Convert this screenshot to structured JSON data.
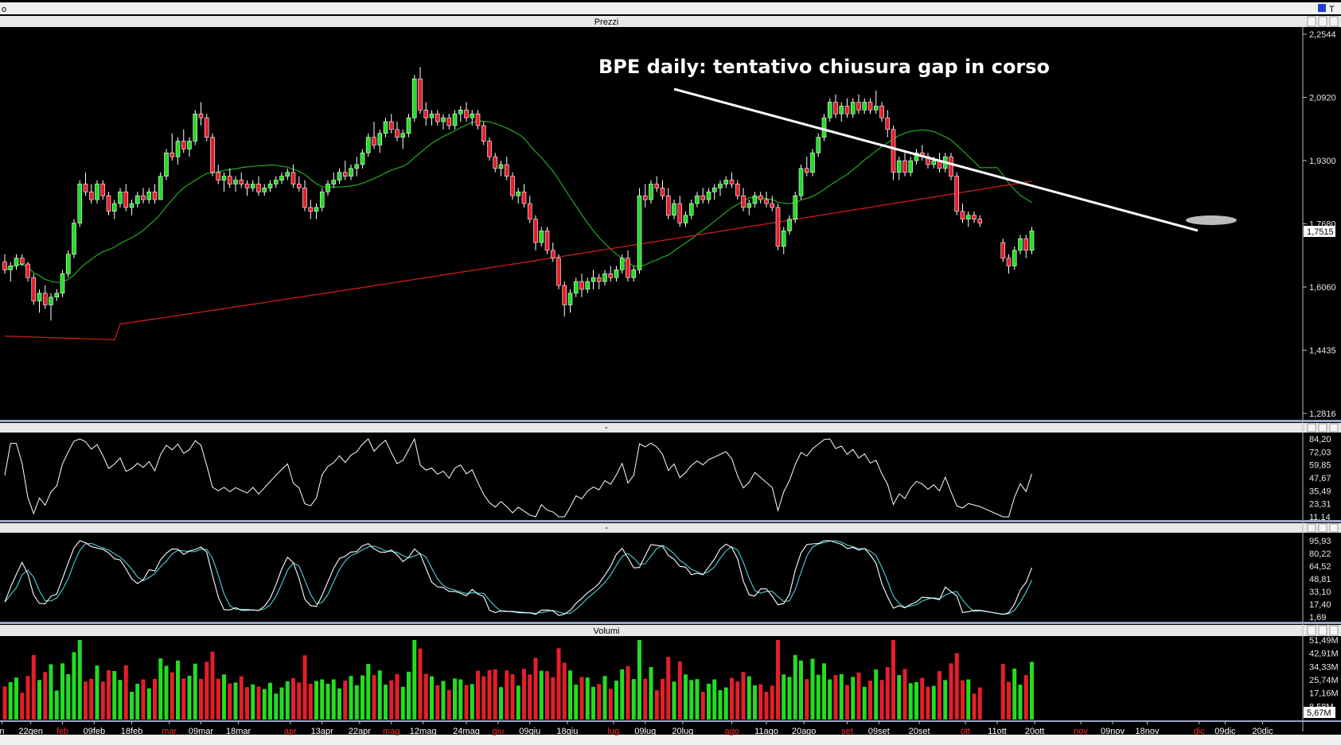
{
  "window": {
    "corner_label": "o",
    "corner_right": "T",
    "panel_titles": [
      "Prezzi",
      "-",
      "-",
      "Volumi"
    ]
  },
  "chart_data": [
    {
      "type": "candlestick",
      "title": "Prezzi",
      "annotation": "BPE daily: tentativo chiusura gap in corso",
      "yticks": [
        "2,2544",
        "2,0920",
        "1,9300",
        "1,7680",
        "1,6060",
        "1,4435",
        "1,2816"
      ],
      "ylim": [
        1.2816,
        2.2544
      ],
      "last_price": "1,7515",
      "ohlc": [
        [
          1.67,
          1.69,
          1.64,
          1.65
        ],
        [
          1.65,
          1.67,
          1.62,
          1.66
        ],
        [
          1.66,
          1.69,
          1.65,
          1.68
        ],
        [
          1.68,
          1.69,
          1.66,
          1.665
        ],
        [
          1.665,
          1.67,
          1.62,
          1.63
        ],
        [
          1.63,
          1.64,
          1.56,
          1.57
        ],
        [
          1.57,
          1.6,
          1.54,
          1.59
        ],
        [
          1.59,
          1.61,
          1.55,
          1.56
        ],
        [
          1.56,
          1.59,
          1.52,
          1.58
        ],
        [
          1.58,
          1.6,
          1.57,
          1.59
        ],
        [
          1.59,
          1.65,
          1.58,
          1.64
        ],
        [
          1.64,
          1.7,
          1.63,
          1.69
        ],
        [
          1.69,
          1.78,
          1.68,
          1.77
        ],
        [
          1.77,
          1.88,
          1.76,
          1.87
        ],
        [
          1.87,
          1.9,
          1.84,
          1.85
        ],
        [
          1.85,
          1.87,
          1.82,
          1.83
        ],
        [
          1.83,
          1.88,
          1.82,
          1.87
        ],
        [
          1.87,
          1.88,
          1.83,
          1.84
        ],
        [
          1.84,
          1.85,
          1.79,
          1.8
        ],
        [
          1.8,
          1.83,
          1.78,
          1.82
        ],
        [
          1.82,
          1.86,
          1.81,
          1.85
        ],
        [
          1.85,
          1.87,
          1.8,
          1.81
        ],
        [
          1.81,
          1.83,
          1.79,
          1.82
        ],
        [
          1.82,
          1.85,
          1.81,
          1.84
        ],
        [
          1.84,
          1.86,
          1.82,
          1.83
        ],
        [
          1.83,
          1.86,
          1.82,
          1.85
        ],
        [
          1.85,
          1.87,
          1.82,
          1.83
        ],
        [
          1.83,
          1.9,
          1.83,
          1.89
        ],
        [
          1.89,
          1.96,
          1.88,
          1.95
        ],
        [
          1.95,
          2.0,
          1.93,
          1.94
        ],
        [
          1.94,
          1.99,
          1.92,
          1.98
        ],
        [
          1.98,
          2.01,
          1.95,
          1.96
        ],
        [
          1.96,
          1.99,
          1.94,
          1.98
        ],
        [
          1.98,
          2.06,
          1.97,
          2.05
        ],
        [
          2.05,
          2.08,
          2.02,
          2.04
        ],
        [
          2.04,
          2.05,
          1.98,
          1.99
        ],
        [
          1.99,
          2.0,
          1.89,
          1.9
        ],
        [
          1.9,
          1.92,
          1.87,
          1.88
        ],
        [
          1.88,
          1.9,
          1.85,
          1.89
        ],
        [
          1.89,
          1.91,
          1.86,
          1.87
        ],
        [
          1.87,
          1.89,
          1.85,
          1.88
        ],
        [
          1.88,
          1.9,
          1.86,
          1.87
        ],
        [
          1.87,
          1.88,
          1.84,
          1.86
        ],
        [
          1.86,
          1.88,
          1.85,
          1.87
        ],
        [
          1.87,
          1.89,
          1.84,
          1.85
        ],
        [
          1.85,
          1.87,
          1.84,
          1.86
        ],
        [
          1.86,
          1.88,
          1.85,
          1.87
        ],
        [
          1.87,
          1.89,
          1.86,
          1.88
        ],
        [
          1.88,
          1.9,
          1.87,
          1.89
        ],
        [
          1.89,
          1.91,
          1.88,
          1.9
        ],
        [
          1.9,
          1.92,
          1.86,
          1.87
        ],
        [
          1.87,
          1.89,
          1.85,
          1.86
        ],
        [
          1.86,
          1.88,
          1.8,
          1.81
        ],
        [
          1.81,
          1.83,
          1.78,
          1.8
        ],
        [
          1.8,
          1.82,
          1.78,
          1.81
        ],
        [
          1.81,
          1.86,
          1.8,
          1.85
        ],
        [
          1.85,
          1.88,
          1.84,
          1.87
        ],
        [
          1.87,
          1.9,
          1.86,
          1.88
        ],
        [
          1.88,
          1.91,
          1.87,
          1.9
        ],
        [
          1.9,
          1.93,
          1.88,
          1.89
        ],
        [
          1.89,
          1.92,
          1.88,
          1.91
        ],
        [
          1.91,
          1.94,
          1.89,
          1.92
        ],
        [
          1.92,
          1.96,
          1.91,
          1.95
        ],
        [
          1.95,
          2.0,
          1.94,
          1.99
        ],
        [
          1.99,
          2.03,
          1.96,
          1.97
        ],
        [
          1.97,
          2.01,
          1.95,
          2.0
        ],
        [
          2.0,
          2.04,
          1.99,
          2.03
        ],
        [
          2.03,
          2.05,
          2.0,
          2.01
        ],
        [
          2.01,
          2.03,
          1.98,
          1.99
        ],
        [
          1.99,
          2.01,
          1.96,
          2.0
        ],
        [
          2.0,
          2.05,
          1.99,
          2.04
        ],
        [
          2.04,
          2.15,
          2.03,
          2.14
        ],
        [
          2.14,
          2.17,
          2.05,
          2.06
        ],
        [
          2.06,
          2.08,
          2.02,
          2.04
        ],
        [
          2.04,
          2.06,
          2.02,
          2.05
        ],
        [
          2.05,
          2.06,
          2.02,
          2.03
        ],
        [
          2.03,
          2.05,
          2.01,
          2.04
        ],
        [
          2.04,
          2.05,
          2.01,
          2.02
        ],
        [
          2.02,
          2.06,
          2.01,
          2.05
        ],
        [
          2.05,
          2.07,
          2.03,
          2.06
        ],
        [
          2.06,
          2.08,
          2.03,
          2.04
        ],
        [
          2.04,
          2.06,
          2.02,
          2.05
        ],
        [
          2.05,
          2.06,
          2.01,
          2.02
        ],
        [
          2.02,
          2.03,
          1.97,
          1.98
        ],
        [
          1.98,
          1.99,
          1.93,
          1.94
        ],
        [
          1.94,
          1.95,
          1.9,
          1.91
        ],
        [
          1.91,
          1.93,
          1.89,
          1.92
        ],
        [
          1.92,
          1.94,
          1.88,
          1.89
        ],
        [
          1.89,
          1.9,
          1.83,
          1.84
        ],
        [
          1.84,
          1.86,
          1.82,
          1.85
        ],
        [
          1.85,
          1.87,
          1.81,
          1.82
        ],
        [
          1.82,
          1.84,
          1.77,
          1.78
        ],
        [
          1.78,
          1.79,
          1.7,
          1.72
        ],
        [
          1.72,
          1.76,
          1.71,
          1.75
        ],
        [
          1.75,
          1.76,
          1.69,
          1.7
        ],
        [
          1.7,
          1.72,
          1.67,
          1.68
        ],
        [
          1.68,
          1.69,
          1.6,
          1.61
        ],
        [
          1.61,
          1.62,
          1.53,
          1.56
        ],
        [
          1.56,
          1.6,
          1.54,
          1.59
        ],
        [
          1.59,
          1.63,
          1.58,
          1.62
        ],
        [
          1.62,
          1.64,
          1.58,
          1.6
        ],
        [
          1.6,
          1.63,
          1.59,
          1.62
        ],
        [
          1.62,
          1.65,
          1.6,
          1.63
        ],
        [
          1.63,
          1.64,
          1.6,
          1.62
        ],
        [
          1.62,
          1.65,
          1.61,
          1.64
        ],
        [
          1.64,
          1.66,
          1.62,
          1.63
        ],
        [
          1.63,
          1.66,
          1.62,
          1.65
        ],
        [
          1.65,
          1.69,
          1.64,
          1.68
        ],
        [
          1.68,
          1.7,
          1.62,
          1.63
        ],
        [
          1.63,
          1.66,
          1.62,
          1.65
        ],
        [
          1.65,
          1.86,
          1.64,
          1.84
        ],
        [
          1.84,
          1.87,
          1.81,
          1.83
        ],
        [
          1.83,
          1.88,
          1.82,
          1.87
        ],
        [
          1.87,
          1.89,
          1.85,
          1.86
        ],
        [
          1.86,
          1.88,
          1.83,
          1.84
        ],
        [
          1.84,
          1.86,
          1.78,
          1.79
        ],
        [
          1.79,
          1.83,
          1.78,
          1.82
        ],
        [
          1.82,
          1.84,
          1.76,
          1.77
        ],
        [
          1.77,
          1.8,
          1.76,
          1.79
        ],
        [
          1.79,
          1.83,
          1.78,
          1.82
        ],
        [
          1.82,
          1.85,
          1.81,
          1.84
        ],
        [
          1.84,
          1.86,
          1.82,
          1.83
        ],
        [
          1.83,
          1.86,
          1.82,
          1.85
        ],
        [
          1.85,
          1.87,
          1.83,
          1.86
        ],
        [
          1.86,
          1.88,
          1.84,
          1.87
        ],
        [
          1.87,
          1.89,
          1.86,
          1.88
        ],
        [
          1.88,
          1.9,
          1.86,
          1.87
        ],
        [
          1.87,
          1.88,
          1.83,
          1.84
        ],
        [
          1.84,
          1.86,
          1.8,
          1.81
        ],
        [
          1.81,
          1.83,
          1.79,
          1.82
        ],
        [
          1.82,
          1.85,
          1.81,
          1.84
        ],
        [
          1.84,
          1.85,
          1.82,
          1.83
        ],
        [
          1.83,
          1.85,
          1.81,
          1.82
        ],
        [
          1.82,
          1.84,
          1.8,
          1.81
        ],
        [
          1.81,
          1.82,
          1.7,
          1.71
        ],
        [
          1.71,
          1.76,
          1.69,
          1.75
        ],
        [
          1.75,
          1.79,
          1.74,
          1.78
        ],
        [
          1.78,
          1.85,
          1.77,
          1.84
        ],
        [
          1.84,
          1.92,
          1.83,
          1.91
        ],
        [
          1.91,
          1.94,
          1.89,
          1.9
        ],
        [
          1.9,
          1.96,
          1.89,
          1.95
        ],
        [
          1.95,
          2.0,
          1.94,
          1.99
        ],
        [
          1.99,
          2.05,
          1.98,
          2.04
        ],
        [
          2.04,
          2.09,
          2.03,
          2.08
        ],
        [
          2.08,
          2.1,
          2.04,
          2.05
        ],
        [
          2.05,
          2.08,
          2.03,
          2.07
        ],
        [
          2.07,
          2.09,
          2.04,
          2.05
        ],
        [
          2.05,
          2.09,
          2.04,
          2.08
        ],
        [
          2.08,
          2.1,
          2.05,
          2.06
        ],
        [
          2.06,
          2.09,
          2.05,
          2.08
        ],
        [
          2.08,
          2.09,
          2.05,
          2.06
        ],
        [
          2.06,
          2.11,
          2.05,
          2.07
        ],
        [
          2.07,
          2.08,
          2.03,
          2.04
        ],
        [
          2.04,
          2.06,
          1.99,
          2.01
        ],
        [
          2.01,
          2.02,
          1.88,
          1.9
        ],
        [
          1.9,
          1.94,
          1.88,
          1.93
        ],
        [
          1.93,
          1.95,
          1.89,
          1.9
        ],
        [
          1.9,
          1.94,
          1.89,
          1.93
        ],
        [
          1.93,
          1.96,
          1.92,
          1.95
        ],
        [
          1.95,
          1.97,
          1.93,
          1.94
        ],
        [
          1.94,
          1.95,
          1.91,
          1.92
        ],
        [
          1.92,
          1.94,
          1.91,
          1.93
        ],
        [
          1.93,
          1.95,
          1.9,
          1.91
        ],
        [
          1.91,
          1.95,
          1.9,
          1.94
        ],
        [
          1.94,
          1.95,
          1.88,
          1.89
        ],
        [
          1.89,
          1.9,
          1.79,
          1.8
        ],
        [
          1.8,
          1.82,
          1.77,
          1.78
        ],
        [
          1.78,
          1.8,
          1.76,
          1.79
        ],
        [
          1.79,
          1.8,
          1.77,
          1.78
        ],
        [
          1.78,
          1.79,
          1.76,
          1.77
        ],
        null,
        null,
        null,
        [
          1.72,
          1.73,
          1.67,
          1.68
        ],
        [
          1.68,
          1.69,
          1.64,
          1.66
        ],
        [
          1.66,
          1.71,
          1.65,
          1.7
        ],
        [
          1.7,
          1.74,
          1.69,
          1.73
        ],
        [
          1.73,
          1.74,
          1.68,
          1.7
        ],
        [
          1.7,
          1.76,
          1.69,
          1.75
        ]
      ]
    },
    {
      "type": "line",
      "name": "oscillator",
      "yticks": [
        "84,20",
        "72,03",
        "59,85",
        "47,67",
        "35,49",
        "23,31",
        "11,14"
      ],
      "ylim": [
        11.14,
        84.2
      ]
    },
    {
      "type": "line",
      "name": "stochastic",
      "yticks": [
        "95,93",
        "80,22",
        "64,52",
        "48,81",
        "33,10",
        "17,40",
        "1,69"
      ],
      "ylim": [
        1.69,
        95.93
      ]
    },
    {
      "type": "bar",
      "title": "Volumi",
      "yticks": [
        "51,49M",
        "42,91M",
        "34,33M",
        "25,74M",
        "17,16M",
        "8,58M"
      ],
      "ylim": [
        0,
        51.49
      ],
      "last_volume": "5,67M"
    }
  ],
  "xaxis": {
    "labels": [
      {
        "text": "n",
        "bar": -0.5,
        "color": "#ffffff"
      },
      {
        "text": "22gen",
        "bar": 4.5,
        "color": "#ffffff"
      },
      {
        "text": "feb",
        "bar": 10,
        "color": "#ff2a2a"
      },
      {
        "text": "09feb",
        "bar": 15.5,
        "color": "#ffffff"
      },
      {
        "text": "18feb",
        "bar": 22,
        "color": "#ffffff"
      },
      {
        "text": "mar",
        "bar": 28.5,
        "color": "#ff2a2a"
      },
      {
        "text": "09mar",
        "bar": 34,
        "color": "#ffffff"
      },
      {
        "text": "18mar",
        "bar": 40.5,
        "color": "#ffffff"
      },
      {
        "text": "apr",
        "bar": 49.5,
        "color": "#ff2a2a"
      },
      {
        "text": "13apr",
        "bar": 55,
        "color": "#ffffff"
      },
      {
        "text": "22apr",
        "bar": 61.5,
        "color": "#ffffff"
      },
      {
        "text": "mag",
        "bar": 67,
        "color": "#ff2a2a"
      },
      {
        "text": "12mag",
        "bar": 72.5,
        "color": "#ffffff"
      },
      {
        "text": "24mag",
        "bar": 80,
        "color": "#ffffff"
      },
      {
        "text": "giu",
        "bar": 85.5,
        "color": "#ff2a2a"
      },
      {
        "text": "09giu",
        "bar": 91,
        "color": "#ffffff"
      },
      {
        "text": "18giu",
        "bar": 97.5,
        "color": "#ffffff"
      },
      {
        "text": "lug",
        "bar": 105.5,
        "color": "#ff2a2a"
      },
      {
        "text": "09lug",
        "bar": 111,
        "color": "#ffffff"
      },
      {
        "text": "20lug",
        "bar": 117.5,
        "color": "#ffffff"
      },
      {
        "text": "ago",
        "bar": 126,
        "color": "#ff2a2a"
      },
      {
        "text": "11ago",
        "bar": 132,
        "color": "#ffffff"
      },
      {
        "text": "20ago",
        "bar": 138.5,
        "color": "#ffffff"
      },
      {
        "text": "set",
        "bar": 146,
        "color": "#ff2a2a"
      },
      {
        "text": "09set",
        "bar": 151.5,
        "color": "#ffffff"
      },
      {
        "text": "20set",
        "bar": 158.5,
        "color": "#ffffff"
      },
      {
        "text": "ott",
        "bar": 166.5,
        "color": "#ff2a2a"
      },
      {
        "text": "11ott",
        "bar": 172,
        "color": "#ffffff"
      },
      {
        "text": "20ott",
        "bar": 178.5,
        "color": "#ffffff"
      },
      {
        "text": "nov",
        "bar": 186.5,
        "color": "#ff2a2a"
      },
      {
        "text": "09nov",
        "bar": 192,
        "color": "#ffffff"
      },
      {
        "text": "18nov",
        "bar": 198,
        "color": "#ffffff"
      },
      {
        "text": "dic",
        "bar": 207,
        "color": "#ff2a2a"
      },
      {
        "text": "09dic",
        "bar": 211.5,
        "color": "#ffffff"
      },
      {
        "text": "20dic",
        "bar": 218,
        "color": "#ffffff"
      }
    ]
  },
  "colors": {
    "up": "#22dd22",
    "down": "#e61e2a",
    "ma_short": "#22aa22",
    "ma_long": "#cc1a1a",
    "trendline": "#ffffff",
    "cyan": "#4fd0d8"
  }
}
